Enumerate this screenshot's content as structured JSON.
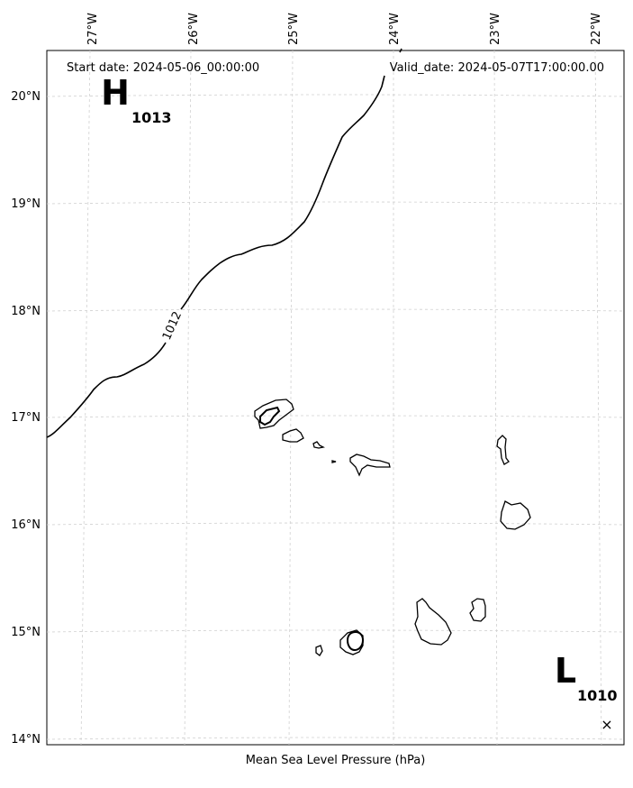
{
  "header": {
    "start_date": "Start date: 2024-05-06_00:00:00",
    "valid_date": "Valid_date: 2024-05-07T17:00:00.00"
  },
  "xlabel": "Mean Sea Level Pressure (hPa)",
  "lon_ticks": [
    "27°W",
    "26°W",
    "25°W",
    "24°W",
    "23°W",
    "22°W"
  ],
  "lat_ticks": [
    "20°N",
    "19°N",
    "18°N",
    "17°N",
    "16°N",
    "15°N",
    "14°N"
  ],
  "pressure_centers": [
    {
      "type": "H",
      "value": "1013"
    },
    {
      "type": "L",
      "value": "1010"
    }
  ],
  "isobars": [
    {
      "value": "1012",
      "label": "1012"
    }
  ],
  "marker": "×",
  "grid": "dashed"
}
